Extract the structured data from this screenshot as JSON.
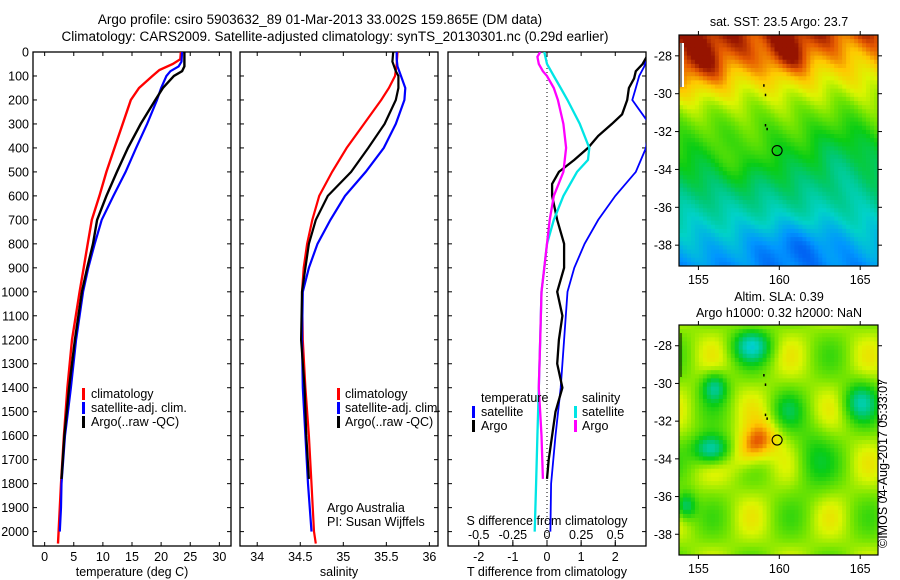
{
  "header": {
    "title_line1": "Argo profile: csiro 5903632_89 01-Mar-2013 33.002S 159.865E (DM data)",
    "title_line2": "Climatology: CARS2009. Satellite-adjusted climatology: synTS_20130301.nc (0.29d earlier)"
  },
  "colors": {
    "climatology": "#ff0000",
    "satellite": "#0000ff",
    "argo": "#000000",
    "sal_satellite": "#00e5e5",
    "sal_argo": "#ff00ff"
  },
  "chart_data": [
    {
      "type": "line",
      "id": "temperature",
      "xlabel": "temperature (deg C)",
      "ylabel": "",
      "xlim": [
        -2,
        32
      ],
      "ylim": [
        0,
        2060
      ],
      "xticks": [
        0,
        5,
        10,
        15,
        20,
        25,
        30
      ],
      "yticks": [
        0,
        100,
        200,
        300,
        400,
        500,
        600,
        700,
        800,
        900,
        1000,
        1100,
        1200,
        1300,
        1400,
        1500,
        1600,
        1700,
        1800,
        1900,
        2000
      ],
      "legend": {
        "placement": "center-left",
        "entries": [
          "climatology",
          "satellite-adj. clim.",
          "Argo(..raw -QC)"
        ]
      },
      "series": [
        {
          "name": "climatology",
          "color_key": "climatology",
          "depth": [
            0,
            30,
            50,
            75,
            100,
            150,
            200,
            300,
            400,
            500,
            600,
            700,
            800,
            900,
            1000,
            1200,
            1400,
            1600,
            1800,
            2000,
            2050
          ],
          "values": [
            23.4,
            23.3,
            22.0,
            19.7,
            18.5,
            16.2,
            14.8,
            13.4,
            12.0,
            10.6,
            9.4,
            8.1,
            7.4,
            6.7,
            6.0,
            4.7,
            3.9,
            3.3,
            2.8,
            2.4,
            2.3
          ]
        },
        {
          "name": "satellite-adj. clim.",
          "color_key": "satellite",
          "depth": [
            0,
            40,
            60,
            80,
            100,
            150,
            200,
            300,
            400,
            500,
            600,
            700,
            800,
            900,
            1000,
            1200,
            1400,
            1600,
            1800,
            1900,
            2000
          ],
          "values": [
            23.6,
            23.5,
            23.0,
            21.6,
            20.9,
            20.0,
            19.3,
            17.6,
            15.7,
            13.9,
            11.8,
            9.8,
            8.6,
            7.5,
            6.6,
            5.4,
            4.5,
            3.5,
            2.9,
            2.8,
            2.6
          ]
        },
        {
          "name": "Argo(..raw -QC)",
          "color_key": "argo",
          "depth": [
            0,
            60,
            80,
            100,
            150,
            200,
            300,
            400,
            500,
            600,
            700,
            800,
            900,
            1000,
            1200,
            1400,
            1600,
            1780
          ],
          "values": [
            24.0,
            24.0,
            23.6,
            22.2,
            20.3,
            19.0,
            16.5,
            14.3,
            12.4,
            10.6,
            9.0,
            8.3,
            7.3,
            6.4,
            5.2,
            4.2,
            3.4,
            2.9
          ]
        }
      ]
    },
    {
      "type": "line",
      "id": "salinity",
      "xlabel": "salinity",
      "xlim": [
        33.8,
        36.1
      ],
      "ylim": [
        0,
        2060
      ],
      "xticks": [
        34,
        34.5,
        35,
        35.5,
        36
      ],
      "legend": {
        "placement": "center-right",
        "entries": [
          "climatology",
          "satellite-adj. clim.",
          "Argo(..raw -QC)"
        ]
      },
      "annotations": [
        "Argo Australia",
        "PI: Susan Wijffels"
      ],
      "series": [
        {
          "name": "climatology",
          "color_key": "climatology",
          "depth": [
            0,
            50,
            100,
            150,
            200,
            300,
            400,
            500,
            600,
            700,
            800,
            900,
            1000,
            1200,
            1400,
            1600,
            1800,
            2000,
            2050
          ],
          "values": [
            35.63,
            35.62,
            35.6,
            35.53,
            35.44,
            35.24,
            35.04,
            34.87,
            34.72,
            34.64,
            34.58,
            34.54,
            34.52,
            34.53,
            34.56,
            34.6,
            34.63,
            34.66,
            34.68
          ]
        },
        {
          "name": "satellite-adj. clim.",
          "color_key": "satellite",
          "depth": [
            0,
            30,
            60,
            100,
            150,
            200,
            300,
            400,
            500,
            600,
            700,
            800,
            900,
            1000,
            1200,
            1400,
            1600,
            1800,
            2000
          ],
          "values": [
            35.62,
            35.62,
            35.63,
            35.67,
            35.72,
            35.71,
            35.61,
            35.47,
            35.26,
            35.02,
            34.85,
            34.7,
            34.6,
            34.53,
            34.52,
            34.53,
            34.56,
            34.59,
            34.63
          ]
        },
        {
          "name": "Argo(..raw -QC)",
          "color_key": "argo",
          "depth": [
            0,
            40,
            80,
            100,
            150,
            200,
            300,
            400,
            500,
            600,
            700,
            800,
            900,
            1000,
            1200,
            1400,
            1600,
            1780
          ],
          "values": [
            35.58,
            35.57,
            35.61,
            35.64,
            35.64,
            35.61,
            35.48,
            35.29,
            35.09,
            34.82,
            34.68,
            34.6,
            34.56,
            34.52,
            34.51,
            34.55,
            34.57,
            34.6
          ]
        }
      ]
    },
    {
      "type": "line",
      "id": "differences",
      "xlabel": "T difference from climatology",
      "xlabel_top": "S difference from climatology",
      "xlim": [
        -2.9,
        2.9
      ],
      "xlim_salinity": [
        -0.725,
        0.725
      ],
      "ylim": [
        0,
        2060
      ],
      "xticks": [
        -2,
        -1,
        0,
        1,
        2
      ],
      "xticks_top": [
        -0.5,
        -0.25,
        0,
        0.25,
        0.5
      ],
      "xtick_labels_top": [
        "-0.5",
        "-0.25",
        "0",
        "0.25",
        "0.5"
      ],
      "legend": {
        "placement": "lower-center",
        "temperature": {
          "heading": "temperature",
          "entries": [
            "satellite",
            "Argo"
          ]
        },
        "salinity": {
          "heading": "salinity",
          "entries": [
            "satellite",
            "Argo"
          ]
        }
      },
      "series": [
        {
          "name": "temperature satellite",
          "color_key": "satellite",
          "units": "T",
          "depth": [
            0,
            30,
            60,
            100,
            150,
            200,
            300,
            400,
            500,
            600,
            700,
            800,
            900,
            1000,
            1200,
            1400,
            1600,
            1800,
            2000
          ],
          "values": [
            3.0,
            2.9,
            2.85,
            2.7,
            2.6,
            2.5,
            3.0,
            2.9,
            2.6,
            2.0,
            1.5,
            1.1,
            0.8,
            0.6,
            0.5,
            0.4,
            0.25,
            0.12,
            0.1
          ]
        },
        {
          "name": "temperature Argo",
          "color_key": "argo",
          "units": "T",
          "depth": [
            0,
            25,
            50,
            80,
            110,
            150,
            200,
            260,
            300,
            350,
            400,
            450,
            500,
            550,
            600,
            700,
            800,
            900,
            1000,
            1100,
            1200,
            1300,
            1400,
            1500,
            1600,
            1700,
            1780
          ],
          "values": [
            3.0,
            2.9,
            2.8,
            2.6,
            2.55,
            2.4,
            2.35,
            2.2,
            1.9,
            1.5,
            1.2,
            0.8,
            0.35,
            0.15,
            0.15,
            0.3,
            0.5,
            0.5,
            0.3,
            0.45,
            0.35,
            0.3,
            0.45,
            0.25,
            0.15,
            0.05,
            0.0
          ]
        },
        {
          "name": "salinity satellite",
          "color_key": "sal_satellite",
          "units": "S",
          "depth": [
            0,
            50,
            100,
            150,
            200,
            300,
            400,
            450,
            500,
            600,
            700,
            800,
            900,
            1000,
            1200,
            1400,
            1600,
            1800,
            2000
          ],
          "values": [
            -0.02,
            0.0,
            0.05,
            0.1,
            0.15,
            0.24,
            0.31,
            0.3,
            0.22,
            0.12,
            0.05,
            0.0,
            -0.02,
            -0.04,
            -0.05,
            -0.06,
            -0.07,
            -0.08,
            -0.09
          ]
        },
        {
          "name": "salinity Argo",
          "color_key": "sal_argo",
          "units": "S",
          "depth": [
            0,
            20,
            50,
            80,
            100,
            150,
            200,
            300,
            400,
            500,
            600,
            700,
            800,
            900,
            1000,
            1200,
            1400,
            1600,
            1780
          ],
          "values": [
            -0.05,
            -0.07,
            -0.06,
            -0.03,
            0.0,
            0.05,
            0.08,
            0.12,
            0.14,
            0.12,
            0.05,
            0.02,
            0.0,
            -0.02,
            -0.04,
            -0.05,
            -0.06,
            -0.04,
            -0.03
          ]
        }
      ]
    },
    {
      "type": "heatmap",
      "id": "sst_map",
      "title": "sat. SST: 23.5 Argo: 23.7",
      "xlim": [
        153.8,
        166.1
      ],
      "ylim": [
        -39.1,
        -26.9
      ],
      "xticks": [
        155,
        160,
        165
      ],
      "yticks": [
        -28,
        -30,
        -32,
        -34,
        -36,
        -38
      ],
      "marker": {
        "lon": 159.865,
        "lat": -33.002
      }
    },
    {
      "type": "heatmap",
      "id": "sla_map",
      "title_line1": "Altim. SLA: 0.39",
      "title_line2": "Argo h1000: 0.32 h2000: NaN",
      "xlim": [
        153.8,
        166.1
      ],
      "ylim": [
        -39.1,
        -26.9
      ],
      "xticks": [
        155,
        160,
        165
      ],
      "yticks": [
        -28,
        -30,
        -32,
        -34,
        -36,
        -38
      ],
      "marker": {
        "lon": 159.865,
        "lat": -33.002
      }
    }
  ],
  "footer": {
    "timestamp": "©IMOS 04-Aug-2017 05:33:07"
  }
}
